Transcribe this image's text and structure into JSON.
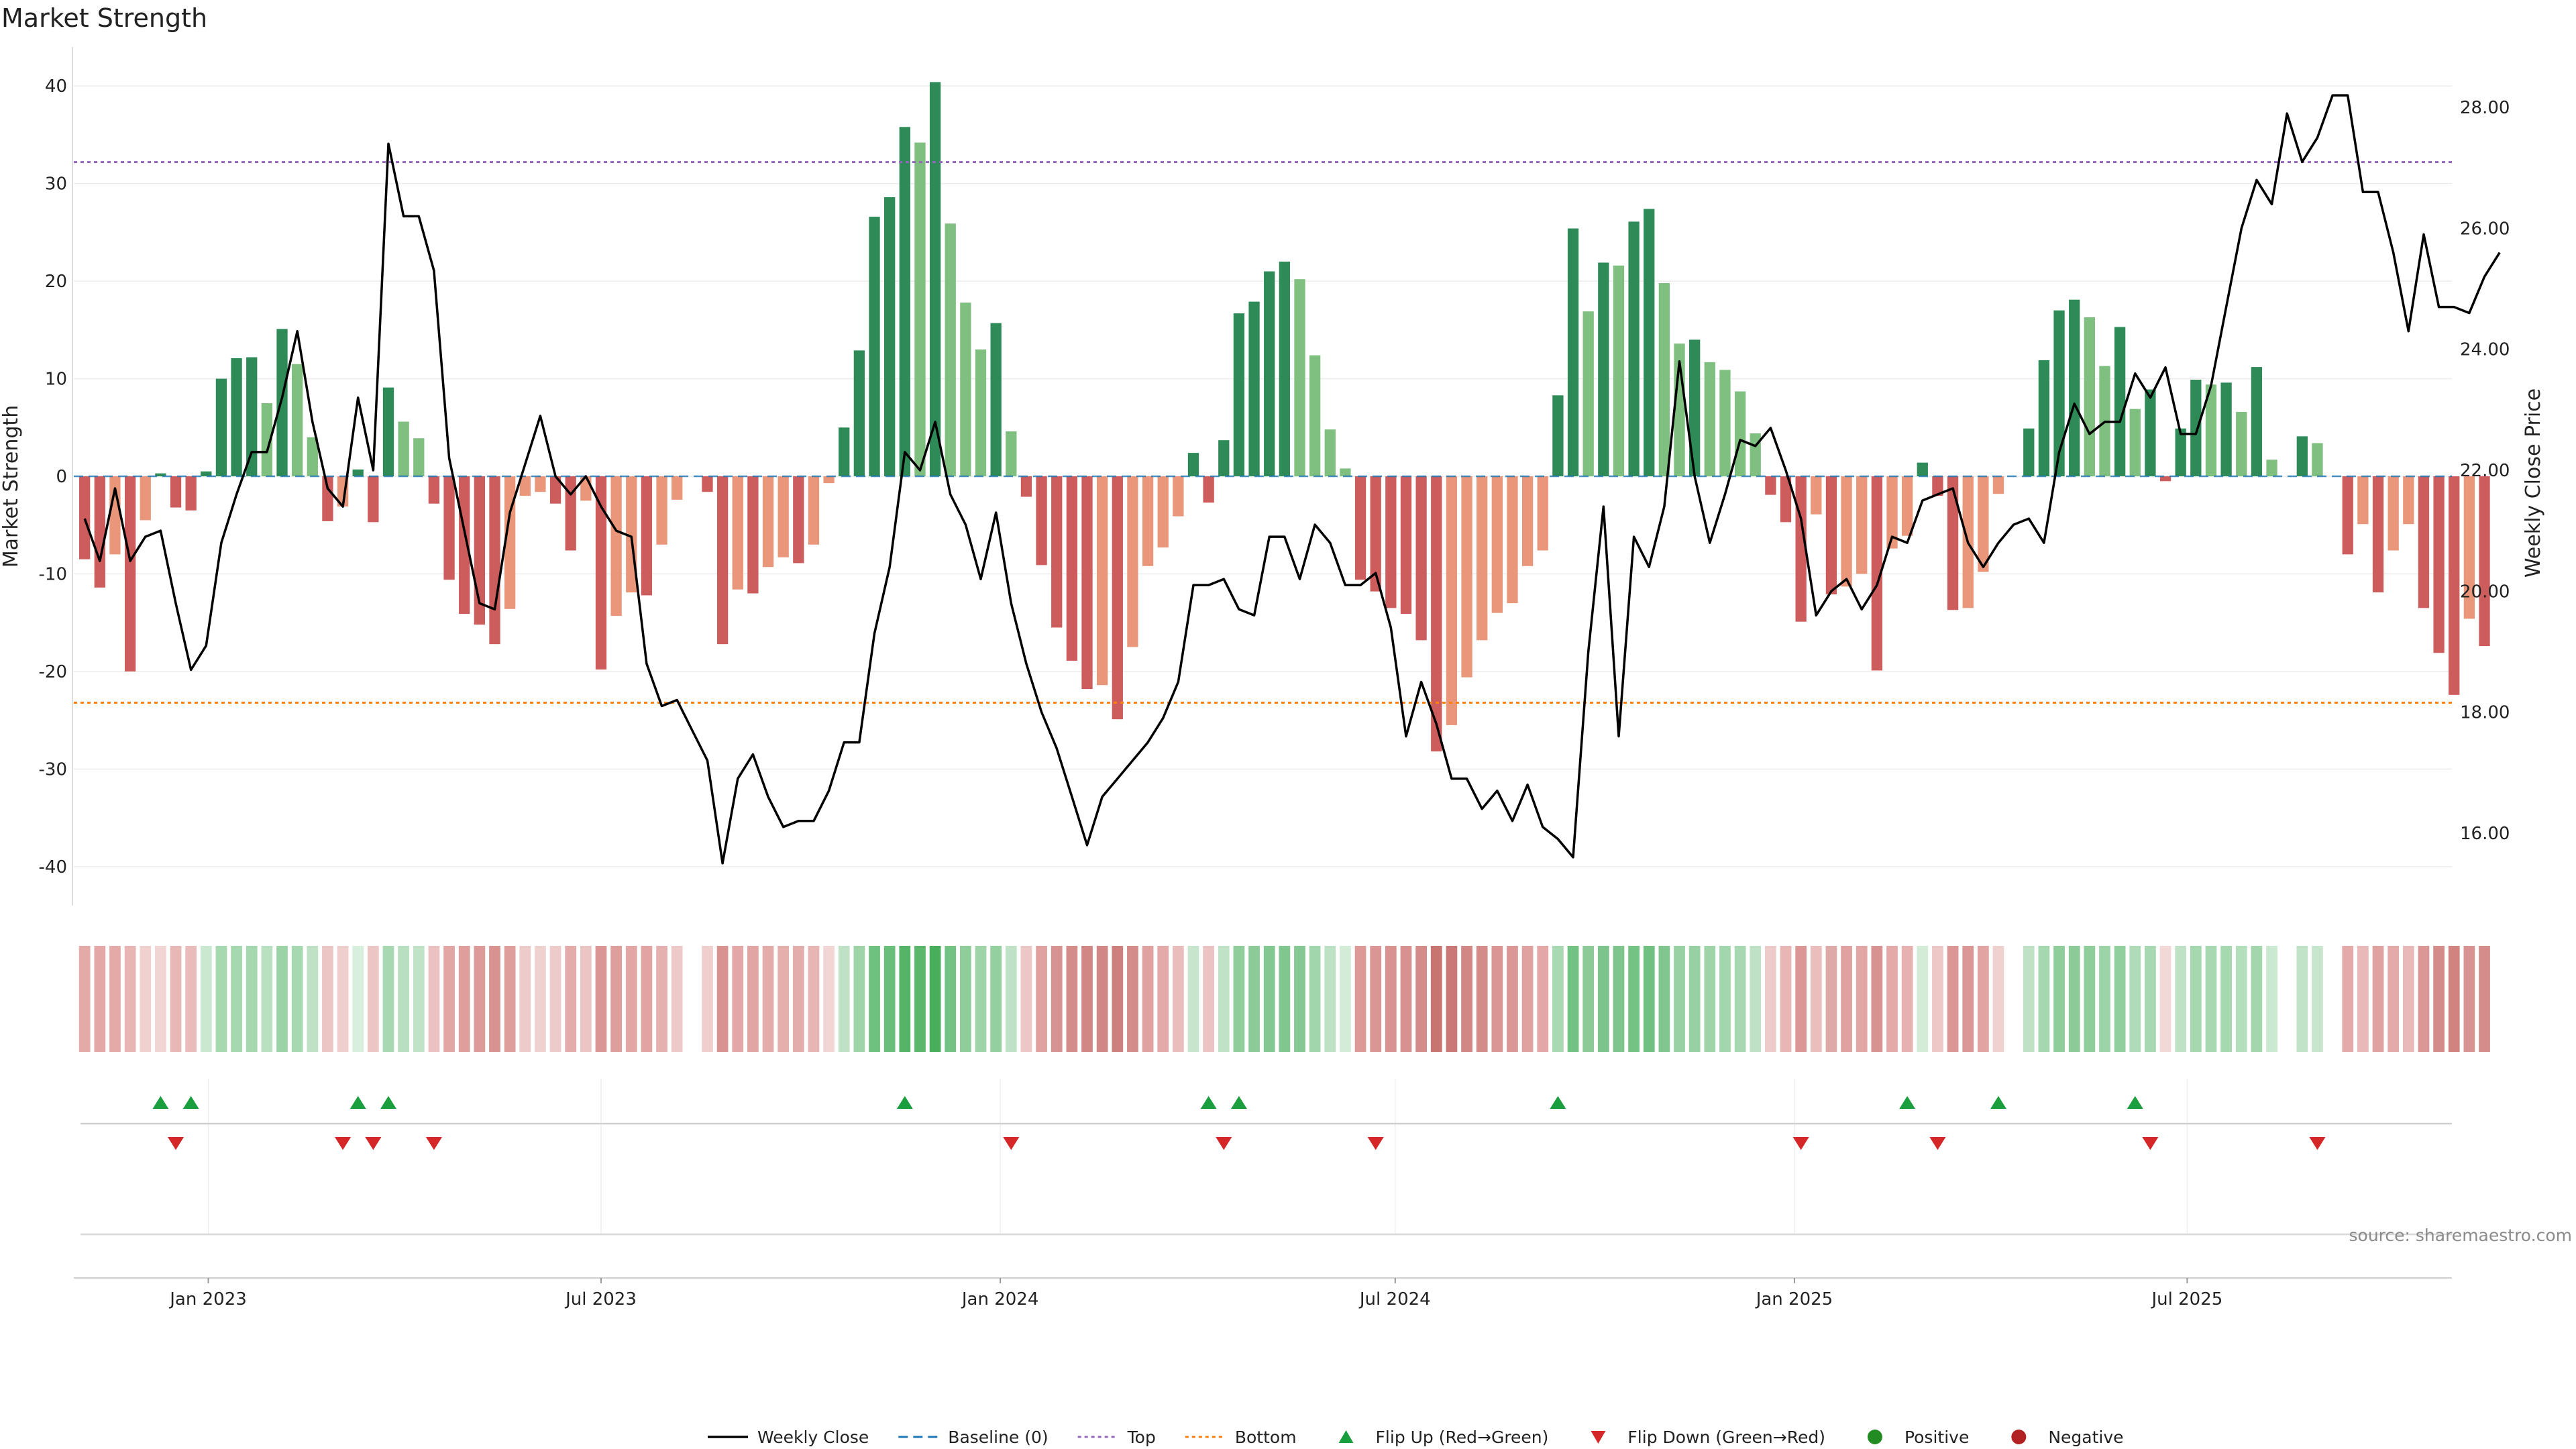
{
  "chart_data": {
    "type": "bar",
    "title": "Market Strength",
    "ylabel_left": "Market Strength",
    "ylabel_right": "Weekly Close Price",
    "source": "source: sharemaestro.com",
    "ylim_left": [
      -44,
      44
    ],
    "ylim_right": [
      14.8,
      29.0
    ],
    "yticks_left": [
      -40,
      -30,
      -20,
      -10,
      0,
      10,
      20,
      30,
      40
    ],
    "yticks_right": [
      16,
      18,
      20,
      22,
      24,
      26,
      28
    ],
    "yticks_right_labels": [
      "16.00",
      "18.00",
      "20.00",
      "22.00",
      "24.00",
      "26.00",
      "28.00"
    ],
    "top_line": 32.2,
    "bottom_line": -23.2,
    "x_start": "2022-10-31",
    "x_end": "2025-10-31",
    "first_week": "2022-11-05",
    "x_ticks": [
      {
        "date": "2023-01-01",
        "label": "Jan 2023"
      },
      {
        "date": "2023-07-01",
        "label": "Jul 2023"
      },
      {
        "date": "2024-01-01",
        "label": "Jan 2024"
      },
      {
        "date": "2024-07-01",
        "label": "Jul 2024"
      },
      {
        "date": "2025-01-01",
        "label": "Jan 2025"
      },
      {
        "date": "2025-07-01",
        "label": "Jul 2025"
      }
    ],
    "strength": [
      -8.5,
      -11.4,
      -8.0,
      -20.0,
      -4.5,
      0.3,
      -3.2,
      -3.5,
      0.5,
      10.0,
      12.1,
      12.2,
      7.5,
      15.1,
      11.5,
      4.0,
      -4.6,
      -3.1,
      0.7,
      -4.7,
      9.1,
      5.6,
      3.9,
      -2.8,
      -10.6,
      -14.1,
      -15.2,
      -17.2,
      -13.6,
      -2.0,
      -1.6,
      -2.8,
      -7.6,
      -2.5,
      -19.8,
      -14.3,
      -11.9,
      -12.2,
      -7.0,
      -2.4,
      0,
      -1.6,
      -17.2,
      -11.6,
      -12.0,
      -9.3,
      -8.3,
      -8.9,
      -7.0,
      -0.7,
      5.0,
      12.9,
      26.6,
      28.6,
      35.8,
      34.2,
      40.4,
      25.9,
      17.8,
      13.0,
      15.7,
      4.6,
      -2.1,
      -9.1,
      -15.5,
      -18.9,
      -21.8,
      -21.4,
      -24.9,
      -17.5,
      -9.2,
      -7.3,
      -4.1,
      2.4,
      -2.7,
      3.7,
      16.7,
      17.9,
      21.0,
      22.0,
      20.2,
      12.4,
      4.8,
      0.8,
      -10.6,
      -11.8,
      -13.5,
      -14.1,
      -16.8,
      -28.2,
      -25.5,
      -20.6,
      -16.8,
      -14.0,
      -13.0,
      -9.2,
      -7.6,
      8.3,
      25.4,
      16.9,
      21.9,
      21.6,
      26.1,
      27.4,
      19.8,
      13.6,
      14.0,
      11.7,
      10.9,
      8.7,
      4.4,
      -1.9,
      -4.7,
      -14.9,
      -3.9,
      -12.1,
      -11.3,
      -10.0,
      -19.9,
      -7.4,
      -6.1,
      1.4,
      -2.0,
      -13.7,
      -13.5,
      -9.8,
      -1.8,
      0,
      4.9,
      11.9,
      17.0,
      18.1,
      16.3,
      11.3,
      15.3,
      6.9,
      8.9,
      -0.5,
      4.9,
      9.9,
      9.4,
      9.6,
      6.6,
      11.2,
      1.7,
      0,
      4.1,
      3.4,
      0,
      -8.0,
      -4.9,
      -11.9,
      -7.6,
      -4.9,
      -13.5,
      -18.1,
      -22.4,
      -14.6,
      -17.4
    ],
    "price": [
      21.2,
      20.5,
      21.7,
      20.5,
      20.9,
      21.0,
      19.8,
      18.7,
      19.1,
      20.8,
      21.6,
      22.3,
      22.3,
      23.2,
      24.3,
      22.8,
      21.7,
      21.4,
      23.2,
      22.0,
      27.4,
      26.2,
      26.2,
      25.3,
      22.2,
      21.0,
      19.8,
      19.7,
      21.3,
      22.1,
      22.9,
      21.9,
      21.6,
      21.9,
      21.4,
      21.0,
      20.9,
      18.8,
      18.1,
      18.2,
      17.7,
      17.2,
      15.5,
      16.9,
      17.3,
      16.6,
      16.1,
      16.2,
      16.2,
      16.7,
      17.5,
      17.5,
      19.3,
      20.4,
      22.3,
      22.0,
      22.8,
      21.6,
      21.1,
      20.2,
      21.3,
      19.8,
      18.8,
      18.0,
      17.4,
      16.6,
      15.8,
      16.6,
      16.9,
      17.2,
      17.5,
      17.9,
      18.5,
      20.1,
      20.1,
      20.2,
      19.7,
      19.6,
      20.9,
      20.9,
      20.2,
      21.1,
      20.8,
      20.1,
      20.1,
      20.3,
      19.4,
      17.6,
      18.5,
      17.8,
      16.9,
      16.9,
      16.4,
      16.7,
      16.2,
      16.8,
      16.1,
      15.9,
      15.6,
      19.0,
      21.4,
      17.6,
      20.9,
      20.4,
      21.4,
      23.8,
      21.9,
      20.8,
      21.6,
      22.5,
      22.4,
      22.7,
      22.0,
      21.2,
      19.6,
      20.0,
      20.2,
      19.7,
      20.1,
      20.9,
      20.8,
      21.5,
      21.6,
      21.7,
      20.8,
      20.4,
      20.8,
      21.1,
      21.2,
      20.8,
      22.3,
      23.1,
      22.6,
      22.8,
      22.8,
      23.6,
      23.2,
      23.7,
      22.6,
      22.6,
      23.4,
      24.7,
      26.0,
      26.8,
      26.4,
      27.9,
      27.1,
      27.5,
      28.2,
      28.2,
      26.6,
      26.6,
      25.6,
      24.3,
      25.9,
      24.7,
      24.7,
      24.6,
      25.2,
      25.6
    ],
    "strip_colors": [
      "#e4aaa8",
      "#e2a7a6",
      "#e3aaa8",
      "#e7b5b4",
      "#f0d1d0",
      "#f1d5d4",
      "#e8b8b7",
      "#e9bcbb",
      "#c9e8cf",
      "#a7d9b0",
      "#a5d8ae",
      "#a5d8ae",
      "#b9e0c1",
      "#9bd3a6",
      "#a7d9b0",
      "#bfe2c6",
      "#ecc6c5",
      "#efcfce",
      "#d9efde",
      "#ecc6c4",
      "#a8d8b2",
      "#b8e0c0",
      "#c0e2c7",
      "#ebc2c1",
      "#e2a6a4",
      "#dd9e9c",
      "#dc9b99",
      "#d89391",
      "#dd9e9c",
      "#eccbca",
      "#efd1d0",
      "#eccbca",
      "#e3acab",
      "#ebc5c4",
      "#d99694",
      "#dd9e9c",
      "#e2a6a4",
      "#e1a4a2",
      "#e5b1b0",
      "#edcac9",
      "#ffffff",
      "#efcfce",
      "#d89391",
      "#e2a7a6",
      "#e1a5a3",
      "#e3acab",
      "#e5afae",
      "#e3adac",
      "#e7b5b3",
      "#f1d6d5",
      "#bfe2c6",
      "#9ed4a8",
      "#6fc180",
      "#69be7a",
      "#55b467",
      "#5ab76c",
      "#48ae5b",
      "#72c283",
      "#8fcd9b",
      "#9ed4a8",
      "#93cf9f",
      "#bfe2c6",
      "#ecc7c6",
      "#e0a2a0",
      "#d79391",
      "#d48c8a",
      "#d18785",
      "#d18785",
      "#ce807e",
      "#d48c8a",
      "#e0a2a0",
      "#e3aaa9",
      "#e9bdbc",
      "#c7e5cd",
      "#ebc3c2",
      "#c0e2c7",
      "#8fcd9b",
      "#8ccb98",
      "#83c791",
      "#81c68f",
      "#86c894",
      "#a1d5ab",
      "#bde1c4",
      "#d3ecd8",
      "#dc9997",
      "#da9694",
      "#d89390",
      "#d79190",
      "#d48c8a",
      "#c87572",
      "#ca7976",
      "#d18785",
      "#d48c8a",
      "#d99694",
      "#da9795",
      "#e0a2a0",
      "#e2a7a6",
      "#a9d9b2",
      "#72c283",
      "#8ccb98",
      "#7dc48c",
      "#7ec58d",
      "#74c385",
      "#70c181",
      "#80c68e",
      "#98d1a4",
      "#97d1a3",
      "#9ed4a8",
      "#a2d6ac",
      "#a8d8b2",
      "#bfe2c6",
      "#eccbca",
      "#e7b6b5",
      "#da9795",
      "#e9bebd",
      "#deaaa8",
      "#e0a2a0",
      "#e2a6a4",
      "#d79391",
      "#e3aaa9",
      "#e6b1b0",
      "#d3ecd8",
      "#edc8c7",
      "#da9795",
      "#da9795",
      "#e1a4a2",
      "#efd1d0",
      "#ffffff",
      "#bfe2c6",
      "#a5d8ae",
      "#8fcd9b",
      "#8ccb98",
      "#8fcd9b",
      "#9dd4a7",
      "#92cf9e",
      "#b0dbb8",
      "#a8d8b2",
      "#f2d8d7",
      "#bfe2c6",
      "#a6d8af",
      "#a8d8b2",
      "#a7d9b0",
      "#b4dfbc",
      "#a3d6ad",
      "#cbe8d1",
      "#ffffff",
      "#c1e3c8",
      "#c8e6ce",
      "#ffffff",
      "#e3aaa9",
      "#e8b9b8",
      "#dfa2a0",
      "#e3aaa9",
      "#e8b9b8",
      "#da9795",
      "#d48c8a",
      "#d0837f",
      "#d79391",
      "#d48d8b"
    ],
    "flip_up": [
      "2022-12-10",
      "2022-12-24",
      "2023-03-11",
      "2023-03-25",
      "2023-11-18",
      "2024-04-06",
      "2024-04-20",
      "2024-09-14",
      "2025-02-22",
      "2025-04-05",
      "2025-06-07"
    ],
    "flip_down": [
      "2022-12-17",
      "2023-03-04",
      "2023-03-18",
      "2023-04-15",
      "2024-01-06",
      "2024-04-13",
      "2024-06-22",
      "2025-01-04",
      "2025-03-08",
      "2025-06-14",
      "2025-08-30"
    ],
    "legend": [
      {
        "key": "weekly_close",
        "label": "Weekly Close"
      },
      {
        "key": "baseline",
        "label": "Baseline (0)"
      },
      {
        "key": "top",
        "label": "Top"
      },
      {
        "key": "bottom",
        "label": "Bottom"
      },
      {
        "key": "flip_up",
        "label": "Flip Up (Red→Green)"
      },
      {
        "key": "flip_down",
        "label": "Flip Down (Green→Red)"
      },
      {
        "key": "positive",
        "label": "Positive"
      },
      {
        "key": "negative",
        "label": "Negative"
      }
    ],
    "colors": {
      "positive_strong": "#2e8b57",
      "positive_light": "#7fbf7f",
      "negative_strong": "#cd5c5c",
      "negative_light": "#e9967a",
      "price_line": "#000000",
      "baseline": "#1f77b4",
      "top": "#9467bd",
      "bottom": "#ff7f0e",
      "flip_up": "#1b9e3e",
      "flip_down": "#d62728",
      "legend_positive": "#228b22",
      "legend_negative": "#b22222"
    }
  }
}
